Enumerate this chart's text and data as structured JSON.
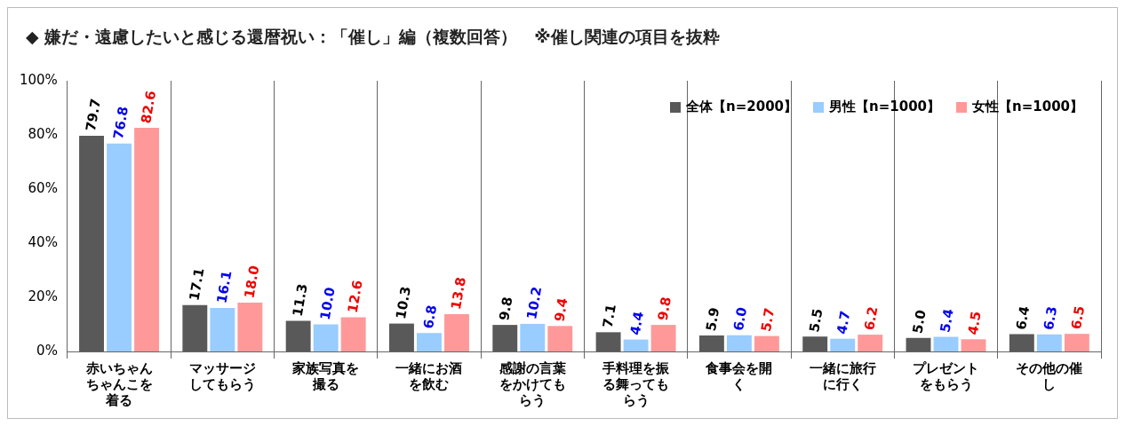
{
  "chart_data": {
    "type": "bar",
    "title": "◆ 嫌だ・遠慮したいと感じる還暦祝い：「催し」編（複数回答）　※催し関連の項目を抜粋",
    "categories": [
      "赤いちゃんちゃんこを着る",
      "マッサージしてもらう",
      "家族写真を撮る",
      "一緒にお酒を飲む",
      "感謝の言葉をかけてもらう",
      "手料理を振る舞ってもらう",
      "食事会を開く",
      "一緒に旅行に行く",
      "プレゼントをもらう",
      "その他の催し"
    ],
    "series": [
      {
        "name": "全体【n=2000】",
        "color": "#595959",
        "values": [
          79.7,
          17.1,
          11.3,
          10.3,
          9.8,
          7.1,
          5.9,
          5.5,
          5.0,
          6.4
        ],
        "value_labels": [
          "79.7",
          "17.1",
          "11.3",
          "10.3",
          "9.8",
          "7.1",
          "5.9",
          "5.5",
          "5.0",
          "6.4"
        ]
      },
      {
        "name": "男性【n=1000】",
        "color": "#99ccff",
        "values": [
          76.8,
          16.1,
          10.0,
          6.8,
          10.2,
          4.4,
          6.0,
          4.7,
          5.4,
          6.3
        ],
        "value_labels": [
          "76.8",
          "16.1",
          "10.0",
          "6.8",
          "10.2",
          "4.4",
          "6.0",
          "4.7",
          "5.4",
          "6.3"
        ]
      },
      {
        "name": "女性【n=1000】",
        "color": "#ff9999",
        "values": [
          82.6,
          18.0,
          12.6,
          13.8,
          9.4,
          9.8,
          5.7,
          6.2,
          4.5,
          6.5
        ],
        "value_labels": [
          "82.6",
          "18.0",
          "12.6",
          "13.8",
          "9.4",
          "9.8",
          "5.7",
          "6.2",
          "4.5",
          "6.5"
        ]
      }
    ],
    "ylim": [
      0,
      100
    ],
    "yticks": [
      {
        "value": 0,
        "label": "0%"
      },
      {
        "value": 20,
        "label": "20%"
      },
      {
        "value": 40,
        "label": "40%"
      },
      {
        "value": 60,
        "label": "60%"
      },
      {
        "value": 80,
        "label": "80%"
      },
      {
        "value": 100,
        "label": "100%"
      }
    ],
    "grid": "x",
    "legend": "top right"
  }
}
